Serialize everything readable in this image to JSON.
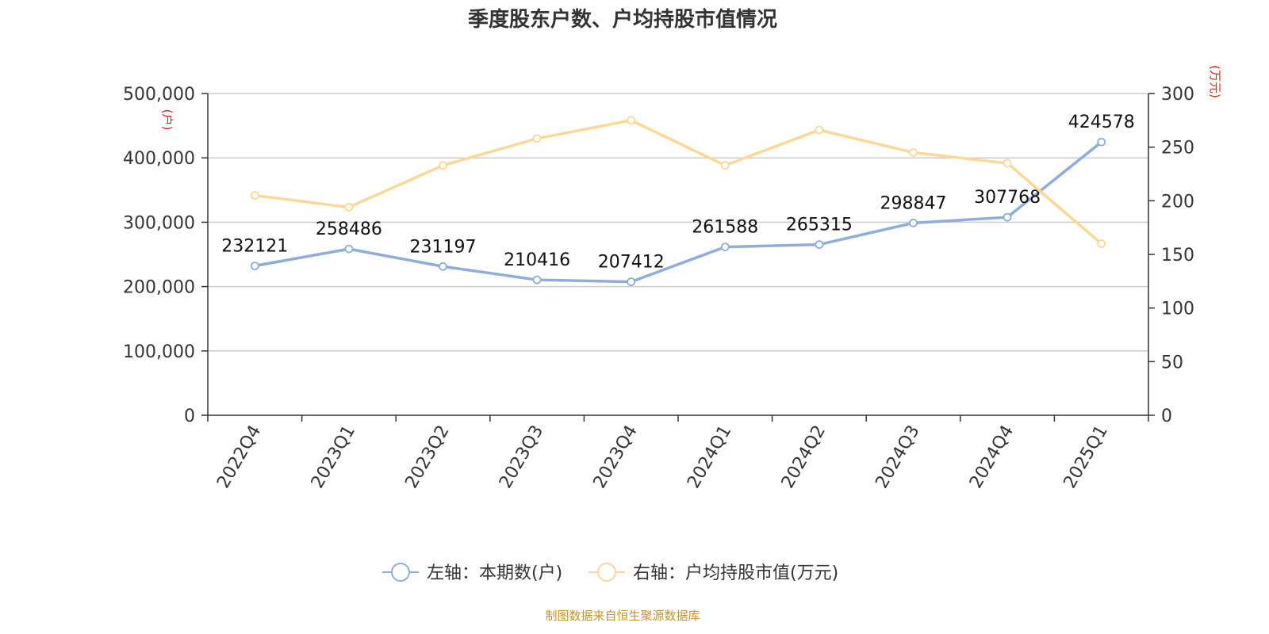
{
  "title": "季度股东户数、户均持股市值情况",
  "source": "制图数据来自恒生聚源数据库",
  "colors": {
    "left_series": "#8eaddb",
    "right_series": "#fcd896",
    "axis_unit": "#e02020",
    "grid": "#cccccc",
    "axis": "#333333"
  },
  "chart_data": {
    "type": "line",
    "categories": [
      "2022Q4",
      "2023Q1",
      "2023Q2",
      "2023Q3",
      "2023Q4",
      "2024Q1",
      "2024Q2",
      "2024Q3",
      "2024Q4",
      "2025Q1"
    ],
    "y_left": {
      "unit": "(户)",
      "ylim": [
        0,
        500000
      ],
      "ticks": [
        "0",
        "100,000",
        "200,000",
        "300,000",
        "400,000",
        "500,000"
      ],
      "tick_values": [
        0,
        100000,
        200000,
        300000,
        400000,
        500000
      ]
    },
    "y_right": {
      "unit": "(万元)",
      "ylim": [
        0,
        300
      ],
      "ticks": [
        "0",
        "50",
        "100",
        "150",
        "200",
        "250",
        "300"
      ],
      "tick_values": [
        0,
        50,
        100,
        150,
        200,
        250,
        300
      ]
    },
    "series": [
      {
        "name": "左轴：本期数(户)",
        "axis": "left",
        "values": [
          232121,
          258486,
          231197,
          210416,
          207412,
          261588,
          265315,
          298847,
          307768,
          424578
        ],
        "labels": [
          "232121",
          "258486",
          "231197",
          "210416",
          "207412",
          "261588",
          "265315",
          "298847",
          "307768",
          "424578"
        ]
      },
      {
        "name": "右轴：户均持股市值(万元)",
        "axis": "right",
        "values": [
          205,
          194,
          233,
          258,
          275,
          233,
          266,
          245,
          235,
          160
        ]
      }
    ],
    "grid": true,
    "legend_position": "bottom"
  }
}
